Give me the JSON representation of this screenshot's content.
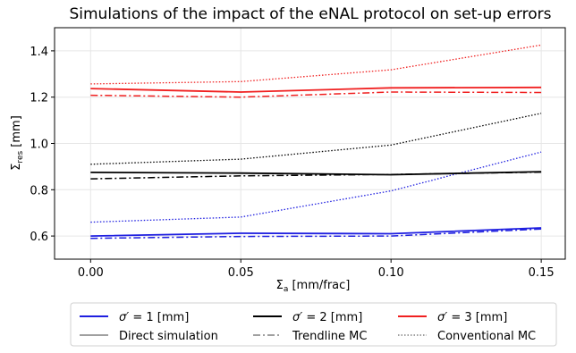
{
  "chart_data": {
    "type": "line",
    "title": "Simulations of the impact of the eNAL protocol on set-up errors",
    "xlabel_main": "Σ",
    "xlabel_sub": "a",
    "xlabel_rest": " [mm/frac]",
    "ylabel_main": "Σ",
    "ylabel_sub": "res",
    "ylabel_rest": " [mm]",
    "xlim": [
      -0.012,
      0.158
    ],
    "ylim": [
      0.5,
      1.5
    ],
    "x_ticks": [
      0.0,
      0.05,
      0.1,
      0.15
    ],
    "x_tick_labels": [
      "0.00",
      "0.05",
      "0.10",
      "0.15"
    ],
    "y_ticks": [
      0.6,
      0.8,
      1.0,
      1.2,
      1.4
    ],
    "y_tick_labels": [
      "0.6",
      "0.8",
      "1.0",
      "1.2",
      "1.4"
    ],
    "grid": true,
    "legend_position": "below",
    "colors": {
      "blue": "#1f1fe0",
      "black": "#000000",
      "red": "#f02020",
      "grid": "#e6e6e6",
      "legend_gray": "#808080"
    },
    "x": [
      0.0,
      0.05,
      0.1,
      0.15
    ],
    "series": [
      {
        "sigma_group": "1",
        "style": "solid",
        "color": "#1f1fe0",
        "values": [
          0.6,
          0.612,
          0.61,
          0.635
        ]
      },
      {
        "sigma_group": "1",
        "style": "dashdot",
        "color": "#1f1fe0",
        "values": [
          0.59,
          0.598,
          0.6,
          0.63
        ]
      },
      {
        "sigma_group": "1",
        "style": "dotted",
        "color": "#1f1fe0",
        "values": [
          0.66,
          0.682,
          0.795,
          0.963
        ]
      },
      {
        "sigma_group": "2",
        "style": "solid",
        "color": "#000000",
        "values": [
          0.875,
          0.872,
          0.865,
          0.878
        ]
      },
      {
        "sigma_group": "2",
        "style": "dashdot",
        "color": "#000000",
        "values": [
          0.847,
          0.86,
          0.866,
          0.876
        ]
      },
      {
        "sigma_group": "2",
        "style": "dotted",
        "color": "#000000",
        "values": [
          0.91,
          0.932,
          0.993,
          1.13
        ]
      },
      {
        "sigma_group": "3",
        "style": "solid",
        "color": "#f02020",
        "values": [
          1.237,
          1.222,
          1.24,
          1.242
        ]
      },
      {
        "sigma_group": "3",
        "style": "dashdot",
        "color": "#f02020",
        "values": [
          1.208,
          1.2,
          1.222,
          1.22
        ]
      },
      {
        "sigma_group": "3",
        "style": "dotted",
        "color": "#f02020",
        "values": [
          1.257,
          1.267,
          1.318,
          1.425
        ]
      }
    ],
    "legend": {
      "items": [
        {
          "sigma": "1",
          "unit": " [mm]",
          "color": "#1f1fe0",
          "style": "solid"
        },
        {
          "sigma": "2",
          "unit": " [mm]",
          "color": "#000000",
          "style": "solid"
        },
        {
          "sigma": "3",
          "unit": " [mm]",
          "color": "#f02020",
          "style": "solid"
        },
        {
          "text": "Direct simulation",
          "color": "#808080",
          "style": "solid"
        },
        {
          "text": "Trendline MC",
          "color": "#808080",
          "style": "dashdot"
        },
        {
          "text": "Conventional MC",
          "color": "#808080",
          "style": "dotted"
        }
      ],
      "sigma_symbol": "σ′",
      "equals": " = "
    }
  }
}
